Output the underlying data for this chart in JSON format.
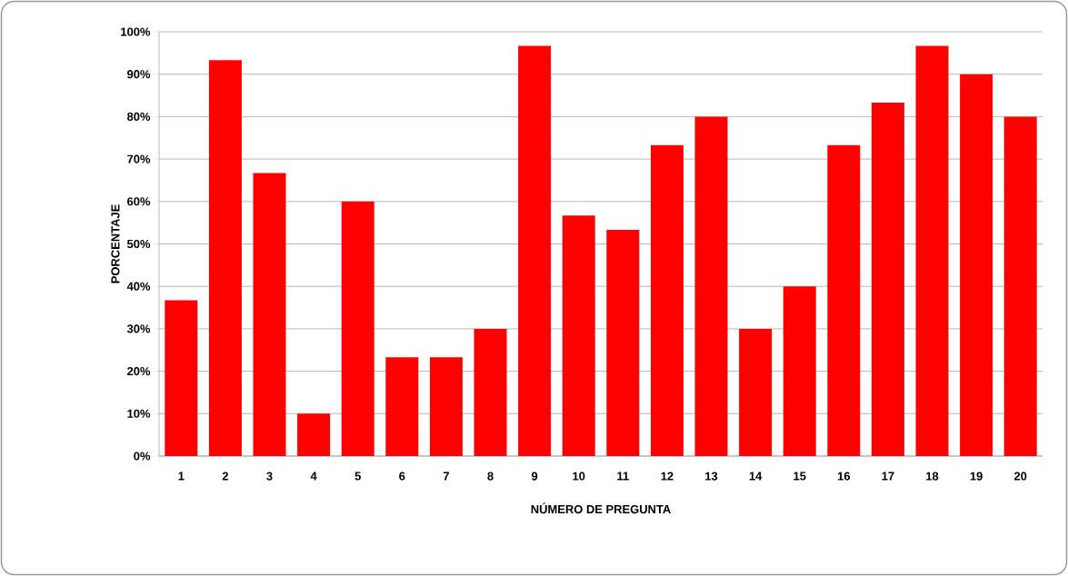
{
  "chart_data": {
    "type": "bar",
    "xlabel": "NÚMERO DE PREGUNTA",
    "ylabel": "PORCENTAJE",
    "categories": [
      "1",
      "2",
      "3",
      "4",
      "5",
      "6",
      "7",
      "8",
      "9",
      "10",
      "11",
      "12",
      "13",
      "14",
      "15",
      "16",
      "17",
      "18",
      "19",
      "20"
    ],
    "values": [
      36.7,
      93.3,
      66.7,
      10,
      60,
      23.3,
      23.3,
      30,
      96.7,
      56.7,
      53.3,
      73.3,
      80,
      30,
      40,
      73.3,
      83.3,
      96.7,
      90,
      80
    ],
    "color": "#ff0000",
    "ylim": [
      0,
      100
    ],
    "yticks": [
      {
        "value": 0,
        "label": "0%"
      },
      {
        "value": 10,
        "label": "10%"
      },
      {
        "value": 20,
        "label": "20%"
      },
      {
        "value": 30,
        "label": "30%"
      },
      {
        "value": 40,
        "label": "40%"
      },
      {
        "value": 50,
        "label": "50%"
      },
      {
        "value": 60,
        "label": "60%"
      },
      {
        "value": 70,
        "label": "70%"
      },
      {
        "value": 80,
        "label": "80%"
      },
      {
        "value": 90,
        "label": "90%"
      },
      {
        "value": 100,
        "label": "100%"
      }
    ],
    "grid": "y"
  }
}
